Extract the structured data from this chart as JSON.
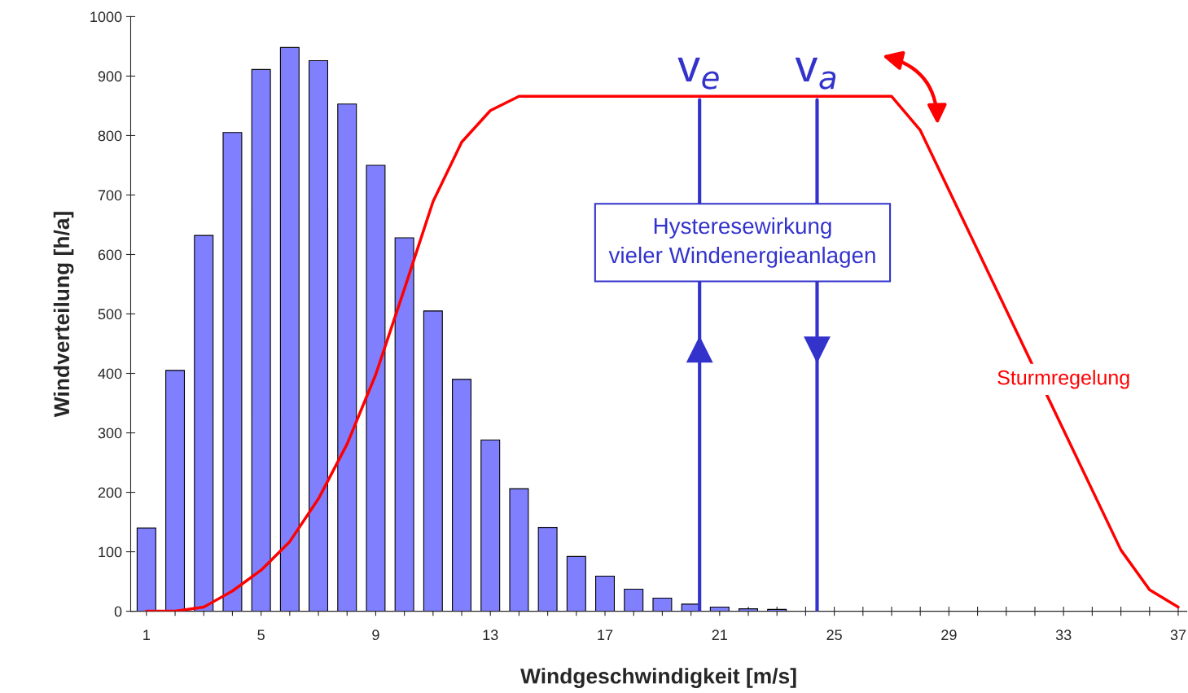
{
  "chart_data": {
    "type": "bar",
    "xlabel": "Windgeschwindigkeit [m/s]",
    "ylabel": "Windverteilung [h/a]",
    "xlim": [
      0.45,
      37.3
    ],
    "ylim": [
      0,
      1000
    ],
    "xticks": [
      1,
      {
        "value": 2,
        "label": null
      },
      {
        "value": 3,
        "label": null
      },
      {
        "value": 4,
        "label": null
      },
      5,
      {
        "value": 6,
        "label": null
      },
      {
        "value": 7,
        "label": null
      },
      {
        "value": 8,
        "label": null
      },
      9,
      {
        "value": 10,
        "label": null
      },
      {
        "value": 11,
        "label": null
      },
      {
        "value": 12,
        "label": null
      },
      13,
      {
        "value": 14,
        "label": null
      },
      {
        "value": 15,
        "label": null
      },
      {
        "value": 16,
        "label": null
      },
      17,
      {
        "value": 18,
        "label": null
      },
      {
        "value": 19,
        "label": null
      },
      {
        "value": 20,
        "label": null
      },
      21,
      {
        "value": 22,
        "label": null
      },
      {
        "value": 23,
        "label": null
      },
      {
        "value": 24,
        "label": null
      },
      25,
      {
        "value": 26,
        "label": null
      },
      {
        "value": 27,
        "label": null
      },
      {
        "value": 28,
        "label": null
      },
      29,
      {
        "value": 30,
        "label": null
      },
      {
        "value": 31,
        "label": null
      },
      {
        "value": 32,
        "label": null
      },
      33,
      {
        "value": 34,
        "label": null
      },
      {
        "value": 35,
        "label": null
      },
      {
        "value": 36,
        "label": null
      },
      37
    ],
    "yticks": [
      0,
      100,
      200,
      300,
      400,
      500,
      600,
      700,
      800,
      900,
      1000
    ],
    "grid": false,
    "series": [
      {
        "color": "#8080ff",
        "x": [
          1,
          2,
          3,
          4,
          5,
          6,
          7,
          8,
          9,
          10,
          11,
          12,
          13,
          14,
          15,
          16,
          17,
          18,
          19,
          20,
          21,
          22,
          23
        ],
        "values": [
          140,
          405,
          632,
          805,
          911,
          948,
          926,
          853,
          750,
          628,
          505,
          390,
          288,
          206,
          141,
          92,
          59,
          37,
          22,
          12,
          7,
          4,
          3
        ]
      },
      {
        "type": "line",
        "color": "#ff0000",
        "x": [
          1,
          2,
          3,
          4,
          5,
          6,
          7,
          8,
          9,
          10,
          11,
          12,
          13,
          14,
          27,
          28,
          35,
          36,
          37
        ],
        "values": [
          0,
          0,
          7,
          34,
          69,
          117,
          189,
          281,
          398,
          542,
          689,
          789,
          842,
          866,
          866,
          809,
          103,
          36,
          7
        ]
      }
    ],
    "ref_lines": [
      {
        "axis": "x",
        "value": 20.3,
        "label": "v$_{e}$",
        "color": "#3333cc"
      },
      {
        "axis": "x",
        "value": 24.4,
        "label": "v$_{a}$",
        "color": "#3333cc"
      }
    ],
    "annotations": [
      "Hysteresewirkung\nvieler Windenergieanlagen",
      "Sturmregelung"
    ]
  }
}
